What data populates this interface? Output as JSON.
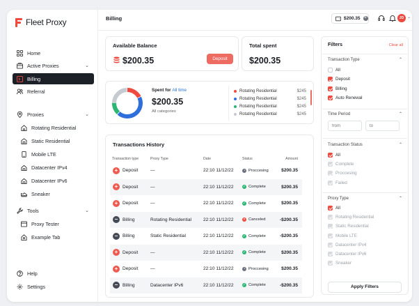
{
  "app": {
    "name": "Fleet Proxy"
  },
  "sidebar": {
    "top": [
      {
        "label": "Home",
        "icon": "grid-icon"
      },
      {
        "label": "Active Proxies",
        "icon": "box-icon",
        "expandable": true
      },
      {
        "label": "Billing",
        "icon": "terminal-icon",
        "active": true
      },
      {
        "label": "Referral",
        "icon": "users-icon"
      }
    ],
    "proxies_label": "Proxies",
    "proxies": [
      {
        "label": "Rotating Residential"
      },
      {
        "label": "Static Residential"
      },
      {
        "label": "Mobile LTE"
      },
      {
        "label": "Datacenter IPv4"
      },
      {
        "label": "Datacenter IPv6"
      },
      {
        "label": "Sneaker"
      }
    ],
    "tools_label": "Tools",
    "tools": [
      {
        "label": "Proxy Tester"
      },
      {
        "label": "Example Tab"
      }
    ],
    "bottom": [
      {
        "label": "Help"
      },
      {
        "label": "Settings"
      }
    ]
  },
  "header": {
    "title": "Billing",
    "wallet": "$200.35",
    "avatar": "JD"
  },
  "balance": {
    "title": "Available Balance",
    "amount": "$200.35",
    "button": "Deposit"
  },
  "total_spent": {
    "title": "Total spent",
    "amount": "$200.35"
  },
  "spent_card": {
    "label_prefix": "Spent for",
    "label_period": "All time",
    "amount": "$200.35",
    "category": "All categories",
    "legend": [
      {
        "name": "Rotating Residential",
        "value": "$245",
        "color": "#ee4a3f"
      },
      {
        "name": "Rotating Residential",
        "value": "$245",
        "color": "#2f6fdb"
      },
      {
        "name": "Rotating Residential",
        "value": "$245",
        "color": "#2bb673"
      },
      {
        "name": "Rotating Residential",
        "value": "$245",
        "color": "#c6cad1"
      }
    ],
    "donut": [
      0.18,
      0.44,
      0.14,
      0.24
    ]
  },
  "transactions": {
    "title": "Transactions History",
    "columns": [
      "Transaction type",
      "Proxy Type",
      "Date",
      "Status",
      "Amount"
    ],
    "rows": [
      {
        "type": "Deposit",
        "proxy": "—",
        "date": "22:10 11/12/22",
        "status": "Proccesing",
        "amount": "$200.35"
      },
      {
        "type": "Deposit",
        "proxy": "—",
        "date": "22:10 11/12/22",
        "status": "Complete",
        "amount": "$200.35"
      },
      {
        "type": "Deposit",
        "proxy": "—",
        "date": "22:10 11/12/22",
        "status": "Complete",
        "amount": "$200.35"
      },
      {
        "type": "Billing",
        "proxy": "Rotating Residential",
        "date": "22:10 11/12/22",
        "status": "Canceled",
        "amount": "-$200.35"
      },
      {
        "type": "Billing",
        "proxy": "Static Residential",
        "date": "22:10 11/12/22",
        "status": "Complete",
        "amount": "-$200.35"
      },
      {
        "type": "Deposit",
        "proxy": "—",
        "date": "22:10 11/12/22",
        "status": "Complete",
        "amount": "$200.35"
      },
      {
        "type": "Deposit",
        "proxy": "—",
        "date": "22:10 11/12/22",
        "status": "Proccesing",
        "amount": "$200.35"
      },
      {
        "type": "Billing",
        "proxy": "Datacenter IPv6",
        "date": "22:10 11/12/22",
        "status": "Complete",
        "amount": "-$200.35"
      }
    ]
  },
  "filters": {
    "title": "Filters",
    "clear": "Clear all",
    "transaction_type": {
      "label": "Transaction Type",
      "options": [
        {
          "label": "All",
          "checked": false
        },
        {
          "label": "Deposit",
          "checked": true
        },
        {
          "label": "Billing",
          "checked": true
        },
        {
          "label": "Auto Renewal",
          "checked": true
        }
      ]
    },
    "time_period": {
      "label": "Time Period",
      "from": "from",
      "to": "to"
    },
    "transaction_status": {
      "label": "Transaction Status",
      "options": [
        {
          "label": "All",
          "checked": true
        },
        {
          "label": "Complete",
          "checked": true,
          "disabled": true
        },
        {
          "label": "Proccesing",
          "checked": true,
          "disabled": true
        },
        {
          "label": "Failed",
          "checked": true,
          "disabled": true
        }
      ]
    },
    "proxy_type": {
      "label": "Proxy Type",
      "options": [
        {
          "label": "All",
          "checked": true
        },
        {
          "label": "Rotating Residential",
          "checked": true,
          "disabled": true
        },
        {
          "label": "Static Residential",
          "checked": true,
          "disabled": true
        },
        {
          "label": "Mobile LTE",
          "checked": true,
          "disabled": true
        },
        {
          "label": "Datacenter IPv4",
          "checked": true,
          "disabled": true
        },
        {
          "label": "Datacenter IPv6",
          "checked": true,
          "disabled": true
        },
        {
          "label": "Sneaker",
          "checked": true,
          "disabled": true
        }
      ]
    },
    "apply": "Apply Filters"
  },
  "colors": {
    "accent": "#ee4a3f",
    "complete": "#2bb673",
    "processing": "#6b7280",
    "canceled": "#ee4a3f"
  }
}
